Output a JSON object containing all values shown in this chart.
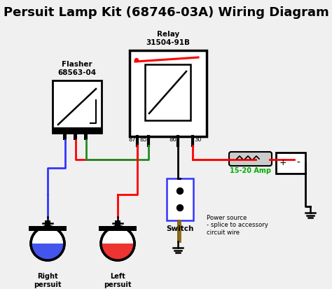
{
  "title": "Persuit Lamp Kit (68746-03A) Wiring Diagram",
  "title_fontsize": 13,
  "title_fontweight": "bold",
  "bg_color": "#f0f0f0",
  "fg_color": "#000000",
  "relay_label": "Relay\n31504-91B",
  "flasher_label": "Flasher\n68563-04",
  "switch_label": "Switch",
  "amp_label": "15-20 Amp",
  "amp_label_color": "#00aa00",
  "power_label": "Power source\n- splice to accessory\ncircuit wire",
  "right_lamp_label": "Right\npersuit\nlamp",
  "left_lamp_label": "Left\npersuit\nlamp",
  "pin_labels": [
    "87",
    "85",
    "86",
    "30"
  ],
  "wire_blue": "#3333ff",
  "wire_red": "#ff0000",
  "wire_green": "#228B22",
  "wire_black": "#000000",
  "wire_brown": "#8B6914",
  "lw": 2.0
}
